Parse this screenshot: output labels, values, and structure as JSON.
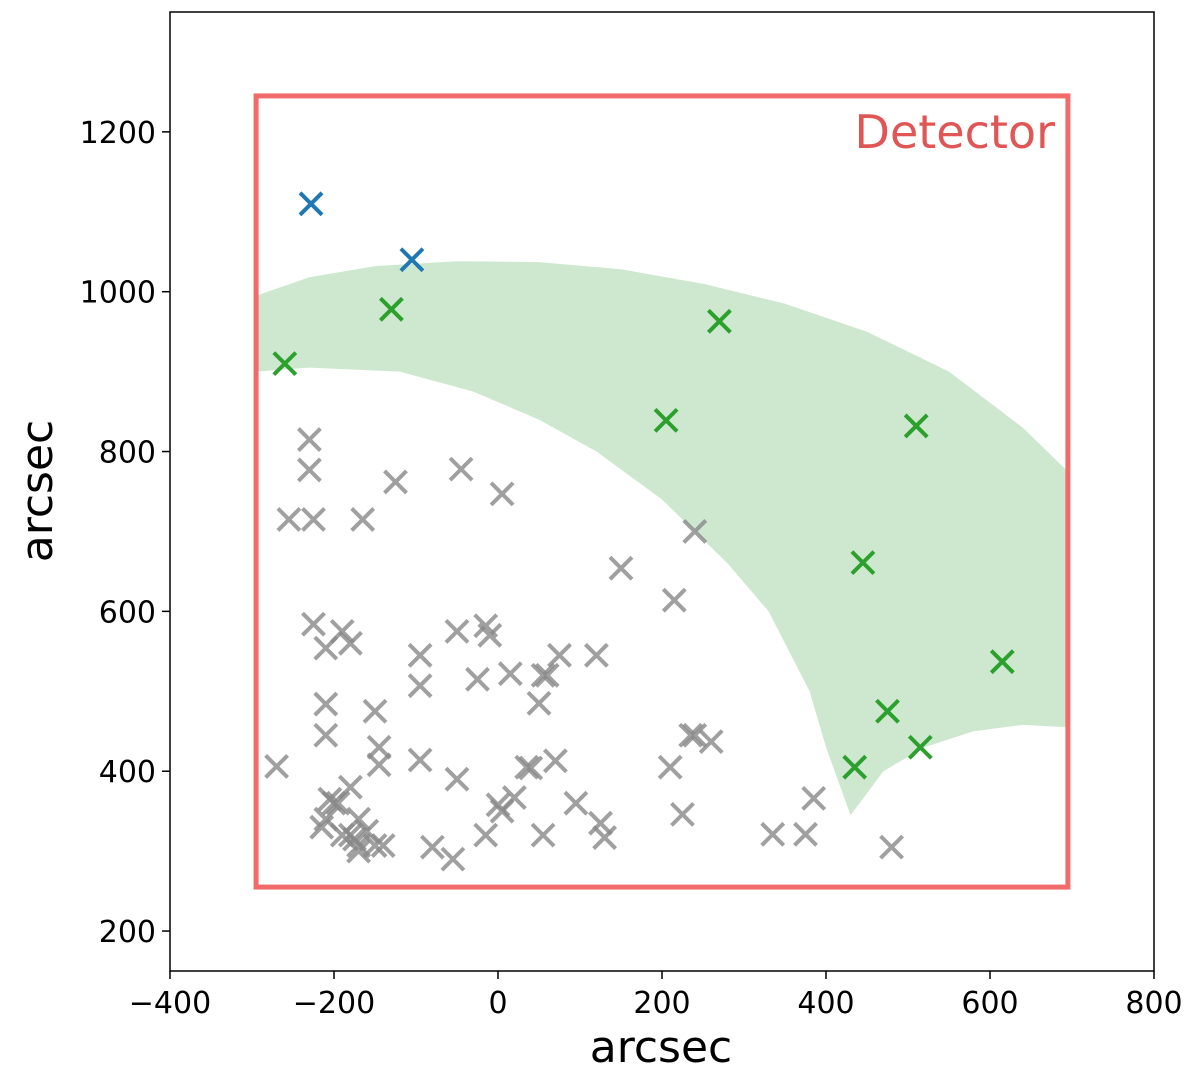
{
  "chart_data": {
    "type": "scatter",
    "title": "",
    "xlabel": "arcsec",
    "ylabel": "arcsec",
    "xlim": [
      -400,
      800
    ],
    "ylim": [
      150,
      1350
    ],
    "xticks": [
      -400,
      -200,
      0,
      200,
      400,
      600,
      800
    ],
    "xtick_labels": [
      "−400",
      "−200",
      "0",
      "200",
      "400",
      "600",
      "800"
    ],
    "yticks": [
      200,
      400,
      600,
      800,
      1000,
      1200
    ],
    "ytick_labels": [
      "200",
      "400",
      "600",
      "800",
      "1000",
      "1200"
    ],
    "grid": false,
    "marker": "x",
    "detector": {
      "label": "Detector",
      "x": [
        -295,
        695
      ],
      "y": [
        255,
        1245
      ],
      "color": "#f26b6b",
      "label_color": "#e05555"
    },
    "band": {
      "color": "#a5d6a7",
      "opacity": 0.55,
      "outer": [
        [
          -295,
          995
        ],
        [
          -230,
          1018
        ],
        [
          -150,
          1032
        ],
        [
          -50,
          1038
        ],
        [
          50,
          1037
        ],
        [
          150,
          1028
        ],
        [
          250,
          1010
        ],
        [
          350,
          985
        ],
        [
          450,
          950
        ],
        [
          550,
          900
        ],
        [
          640,
          830
        ],
        [
          695,
          775
        ]
      ],
      "inner": [
        [
          695,
          455
        ],
        [
          640,
          458
        ],
        [
          580,
          450
        ],
        [
          520,
          430
        ],
        [
          470,
          400
        ],
        [
          430,
          345
        ],
        [
          400,
          430
        ],
        [
          380,
          500
        ],
        [
          330,
          600
        ],
        [
          280,
          660
        ],
        [
          200,
          740
        ],
        [
          120,
          800
        ],
        [
          50,
          840
        ],
        [
          -30,
          875
        ],
        [
          -120,
          900
        ],
        [
          -230,
          905
        ],
        [
          -295,
          900
        ]
      ]
    },
    "series": [
      {
        "color": "#888888",
        "opacity": 0.8,
        "x": [
          -230,
          -230,
          -255,
          -225,
          -165,
          -125,
          -45,
          5,
          240,
          150,
          215,
          -225,
          -190,
          -210,
          -180,
          -95,
          -95,
          -50,
          -15,
          -10,
          -25,
          15,
          60,
          75,
          120,
          -210,
          -210,
          -150,
          -145,
          -145,
          -270,
          -205,
          -200,
          -195,
          -180,
          -170,
          -180,
          -175,
          -160,
          -170,
          -150,
          -170,
          -190,
          -215,
          -210,
          -140,
          -95,
          -80,
          -50,
          -55,
          -15,
          0,
          5,
          20,
          35,
          40,
          50,
          55,
          55,
          70,
          95,
          130,
          125,
          210,
          225,
          240,
          260,
          235,
          335,
          375,
          385,
          480
        ],
        "y": [
          815,
          777,
          715,
          715,
          715,
          762,
          778,
          747,
          700,
          654,
          614,
          584,
          575,
          554,
          560,
          545,
          507,
          575,
          582,
          570,
          515,
          522,
          520,
          545,
          545,
          484,
          445,
          475,
          430,
          408,
          406,
          365,
          360,
          360,
          380,
          340,
          320,
          315,
          325,
          300,
          307,
          307,
          320,
          330,
          340,
          307,
          414,
          305,
          390,
          290,
          320,
          358,
          350,
          367,
          405,
          404,
          485,
          520,
          320,
          413,
          360,
          317,
          335,
          405,
          346,
          445,
          437,
          445,
          321,
          321,
          366,
          305
        ]
      },
      {
        "color": "#2ca02c",
        "opacity": 1,
        "x": [
          -260,
          -130,
          270,
          205,
          510,
          445,
          615,
          475,
          515,
          435
        ],
        "y": [
          910,
          978,
          963,
          839,
          832,
          661,
          537,
          475,
          430,
          405
        ]
      },
      {
        "color": "#1f77b4",
        "opacity": 1,
        "x": [
          -228,
          -105
        ],
        "y": [
          1110,
          1040
        ]
      }
    ]
  }
}
